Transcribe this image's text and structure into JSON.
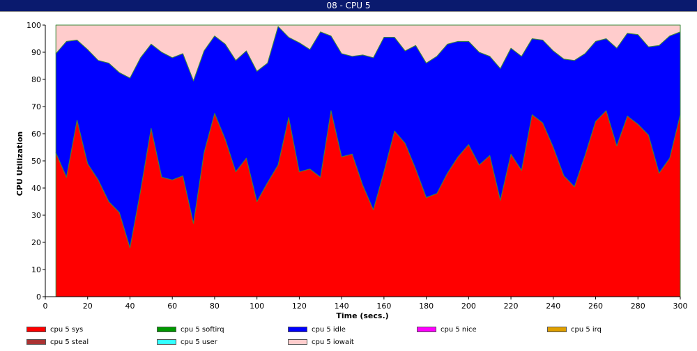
{
  "window": {
    "title": "08 - CPU 5"
  },
  "chart_data": {
    "type": "area",
    "stacked": true,
    "title": "",
    "xlabel": "Time (secs.)",
    "ylabel": "CPU Utilization",
    "xlim": [
      0,
      300
    ],
    "ylim": [
      0,
      100
    ],
    "x_ticks": [
      0,
      20,
      40,
      60,
      80,
      100,
      120,
      140,
      160,
      180,
      200,
      220,
      240,
      260,
      280,
      300
    ],
    "y_ticks": [
      0,
      10,
      20,
      30,
      40,
      50,
      60,
      70,
      80,
      90,
      100
    ],
    "grid": false,
    "legend_position": "bottom",
    "x": [
      5,
      10,
      15,
      20,
      25,
      30,
      35,
      40,
      45,
      50,
      55,
      60,
      65,
      70,
      75,
      80,
      85,
      90,
      95,
      100,
      105,
      110,
      115,
      120,
      125,
      130,
      135,
      140,
      145,
      150,
      155,
      160,
      165,
      170,
      175,
      180,
      185,
      190,
      195,
      200,
      205,
      210,
      215,
      220,
      225,
      230,
      235,
      240,
      245,
      250,
      255,
      260,
      265,
      270,
      275,
      280,
      285,
      290,
      295,
      300
    ],
    "series": [
      {
        "name": "cpu 5 sys",
        "color": "#ff0000",
        "values": [
          53,
          44,
          65,
          49,
          43,
          35,
          31,
          18,
          39,
          62,
          44,
          43,
          44.5,
          27,
          53,
          67.5,
          58,
          46,
          51,
          35,
          42,
          48.5,
          66,
          46,
          47,
          44,
          68.5,
          51.5,
          52.5,
          41,
          32,
          46,
          61,
          56.5,
          47,
          36.5,
          38,
          45.5,
          51.5,
          56,
          48.5,
          52,
          35.5,
          52.5,
          46.5,
          67,
          64,
          55,
          44.5,
          40.5,
          52,
          64.5,
          68.5,
          55.5,
          66.5,
          63.5,
          59.5,
          45.5,
          51,
          67
        ]
      },
      {
        "name": "cpu 5 softirq",
        "color": "#009900",
        "values": [
          0,
          0,
          0,
          0,
          0,
          0,
          0,
          0,
          0,
          0,
          0,
          0,
          0,
          0,
          0,
          0,
          0,
          0,
          0,
          0,
          0,
          0,
          0,
          0,
          0,
          0,
          0,
          0,
          0,
          0,
          0,
          0,
          0,
          0,
          0,
          0,
          0,
          0,
          0,
          0,
          0,
          0,
          0,
          0,
          0,
          0,
          0,
          0,
          0,
          0,
          0,
          0,
          0,
          0,
          0,
          0,
          0,
          0,
          0,
          0
        ]
      },
      {
        "name": "cpu 5 idle",
        "color": "#0000ff",
        "values": [
          36.5,
          50,
          29.5,
          42,
          44,
          51,
          51.5,
          62.5,
          49,
          31,
          46,
          45,
          45,
          52.5,
          37.5,
          28.5,
          35,
          41,
          39.5,
          48,
          44,
          51,
          29.5,
          47.5,
          44,
          53.5,
          27.5,
          38,
          36,
          48,
          56,
          49.5,
          34.5,
          34,
          45.5,
          49.5,
          50.5,
          47.5,
          42.5,
          38,
          41.5,
          36.5,
          48.5,
          39,
          42,
          28,
          30.5,
          35.5,
          43,
          46.5,
          37.5,
          29.5,
          26.5,
          36,
          30.5,
          33,
          32.5,
          47,
          45,
          30.5
        ]
      },
      {
        "name": "cpu 5 nice",
        "color": "#ff00ff",
        "values": [
          0,
          0,
          0,
          0,
          0,
          0,
          0,
          0,
          0,
          0,
          0,
          0,
          0,
          0,
          0,
          0,
          0,
          0,
          0,
          0,
          0,
          0,
          0,
          0,
          0,
          0,
          0,
          0,
          0,
          0,
          0,
          0,
          0,
          0,
          0,
          0,
          0,
          0,
          0,
          0,
          0,
          0,
          0,
          0,
          0,
          0,
          0,
          0,
          0,
          0,
          0,
          0,
          0,
          0,
          0,
          0,
          0,
          0,
          0,
          0
        ]
      },
      {
        "name": "cpu 5 irq",
        "color": "#e0a000",
        "values": [
          0,
          0,
          0,
          0,
          0,
          0,
          0,
          0,
          0,
          0,
          0,
          0,
          0,
          0,
          0,
          0,
          0,
          0,
          0,
          0,
          0,
          0,
          0,
          0,
          0,
          0,
          0,
          0,
          0,
          0,
          0,
          0,
          0,
          0,
          0,
          0,
          0,
          0,
          0,
          0,
          0,
          0,
          0,
          0,
          0,
          0,
          0,
          0,
          0,
          0,
          0,
          0,
          0,
          0,
          0,
          0,
          0,
          0,
          0,
          0
        ]
      },
      {
        "name": "cpu 5 steal",
        "color": "#aa3333",
        "values": [
          0,
          0,
          0,
          0,
          0,
          0,
          0,
          0,
          0,
          0,
          0,
          0,
          0,
          0,
          0,
          0,
          0,
          0,
          0,
          0,
          0,
          0,
          0,
          0,
          0,
          0,
          0,
          0,
          0,
          0,
          0,
          0,
          0,
          0,
          0,
          0,
          0,
          0,
          0,
          0,
          0,
          0,
          0,
          0,
          0,
          0,
          0,
          0,
          0,
          0,
          0,
          0,
          0,
          0,
          0,
          0,
          0,
          0,
          0,
          0
        ]
      },
      {
        "name": "cpu 5 user",
        "color": "#33ffff",
        "values": [
          0,
          0,
          0,
          0,
          0,
          0,
          0,
          0,
          0,
          0,
          0,
          0,
          0,
          0,
          0,
          0,
          0,
          0,
          0,
          0,
          0,
          0,
          0,
          0,
          0,
          0,
          0,
          0,
          0,
          0,
          0,
          0,
          0,
          0,
          0,
          0,
          0,
          0,
          0,
          0,
          0,
          0,
          0,
          0,
          0,
          0,
          0,
          0,
          0,
          0,
          0,
          0,
          0,
          0,
          0,
          0,
          0,
          0,
          0,
          0
        ]
      },
      {
        "name": "cpu 5 iowait",
        "color": "#ffcccc",
        "values": [
          10.5,
          6,
          5.5,
          9,
          13,
          14,
          17.5,
          19.5,
          12,
          7,
          10,
          12,
          10.5,
          20.5,
          9.5,
          4,
          7,
          13,
          9.5,
          17,
          14,
          0.5,
          4.5,
          6.5,
          9,
          2.5,
          4,
          10.5,
          11.5,
          11,
          12,
          4.5,
          4.5,
          9.5,
          7.5,
          14,
          11.5,
          7,
          6,
          6,
          10,
          11.5,
          16,
          8.5,
          11.5,
          5,
          5.5,
          9.5,
          12.5,
          13,
          10.5,
          6,
          5,
          8.5,
          3,
          3.5,
          8,
          7.5,
          4,
          2.5
        ]
      }
    ]
  }
}
